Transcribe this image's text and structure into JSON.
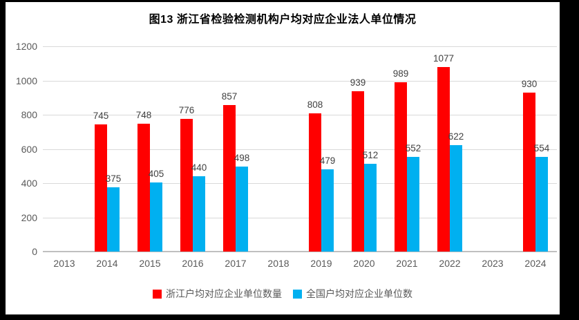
{
  "chart_data": {
    "type": "bar",
    "title": "图13 浙江省检验检测机构户均对应企业法人单位情况",
    "categories": [
      "2013",
      "2014",
      "2015",
      "2016",
      "2017",
      "2018",
      "2019",
      "2020",
      "2021",
      "2022",
      "2023",
      "2024"
    ],
    "series": [
      {
        "name": "浙江户均对应企业单位数量",
        "key": "zhejiang",
        "color": "#ff0000",
        "values": [
          null,
          745,
          748,
          776,
          857,
          null,
          808,
          939,
          989,
          1077,
          null,
          930
        ]
      },
      {
        "name": "全国户均对应企业单位数",
        "key": "national",
        "color": "#00b0f0",
        "values": [
          null,
          375,
          405,
          440,
          498,
          null,
          479,
          512,
          552,
          622,
          null,
          554
        ]
      }
    ],
    "xlabel": "",
    "ylabel": "",
    "ylim": [
      0,
      1200
    ],
    "yticks": [
      0,
      200,
      400,
      600,
      800,
      1000,
      1200
    ],
    "grid": "horizontal",
    "legend_position": "bottom",
    "gridline_color": "#d9d9d9",
    "axis_line_color": "#bfbfbf",
    "tick_label_color": "#595959",
    "data_label_color": "#404040"
  }
}
